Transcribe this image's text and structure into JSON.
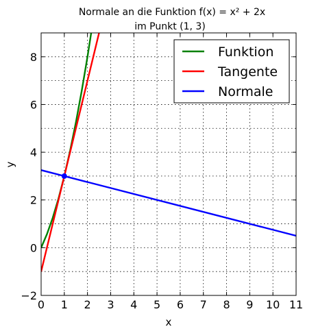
{
  "chart_data": {
    "type": "line",
    "title": "Normale an die Funktion f(x) = x² + 2x",
    "subtitle": "im Punkt (1, 3)",
    "xlabel": "x",
    "ylabel": "y",
    "xlim": [
      0,
      11
    ],
    "ylim": [
      -2,
      9
    ],
    "xticks": [
      0,
      1,
      2,
      3,
      4,
      5,
      6,
      7,
      8,
      9,
      10,
      11
    ],
    "yticks": [
      -2,
      0,
      2,
      4,
      6,
      8
    ],
    "grid": true,
    "legend_position": "top-right",
    "point": {
      "x": 1,
      "y": 3,
      "color": "#0000ff"
    },
    "series": [
      {
        "name": "Funktion",
        "color": "#008000",
        "x": [
          0,
          0.25,
          0.5,
          0.75,
          1,
          1.25,
          1.5,
          1.75,
          2,
          2.16
        ],
        "y": [
          0,
          0.5625,
          1.25,
          2.0625,
          3,
          4.0625,
          5.25,
          6.5625,
          8,
          9.0
        ]
      },
      {
        "name": "Tangente",
        "color": "#ff0000",
        "x": [
          0,
          2.5
        ],
        "y": [
          -1,
          9
        ]
      },
      {
        "name": "Normale",
        "color": "#0000ff",
        "x": [
          0,
          11
        ],
        "y": [
          3.25,
          0.5
        ]
      }
    ]
  }
}
